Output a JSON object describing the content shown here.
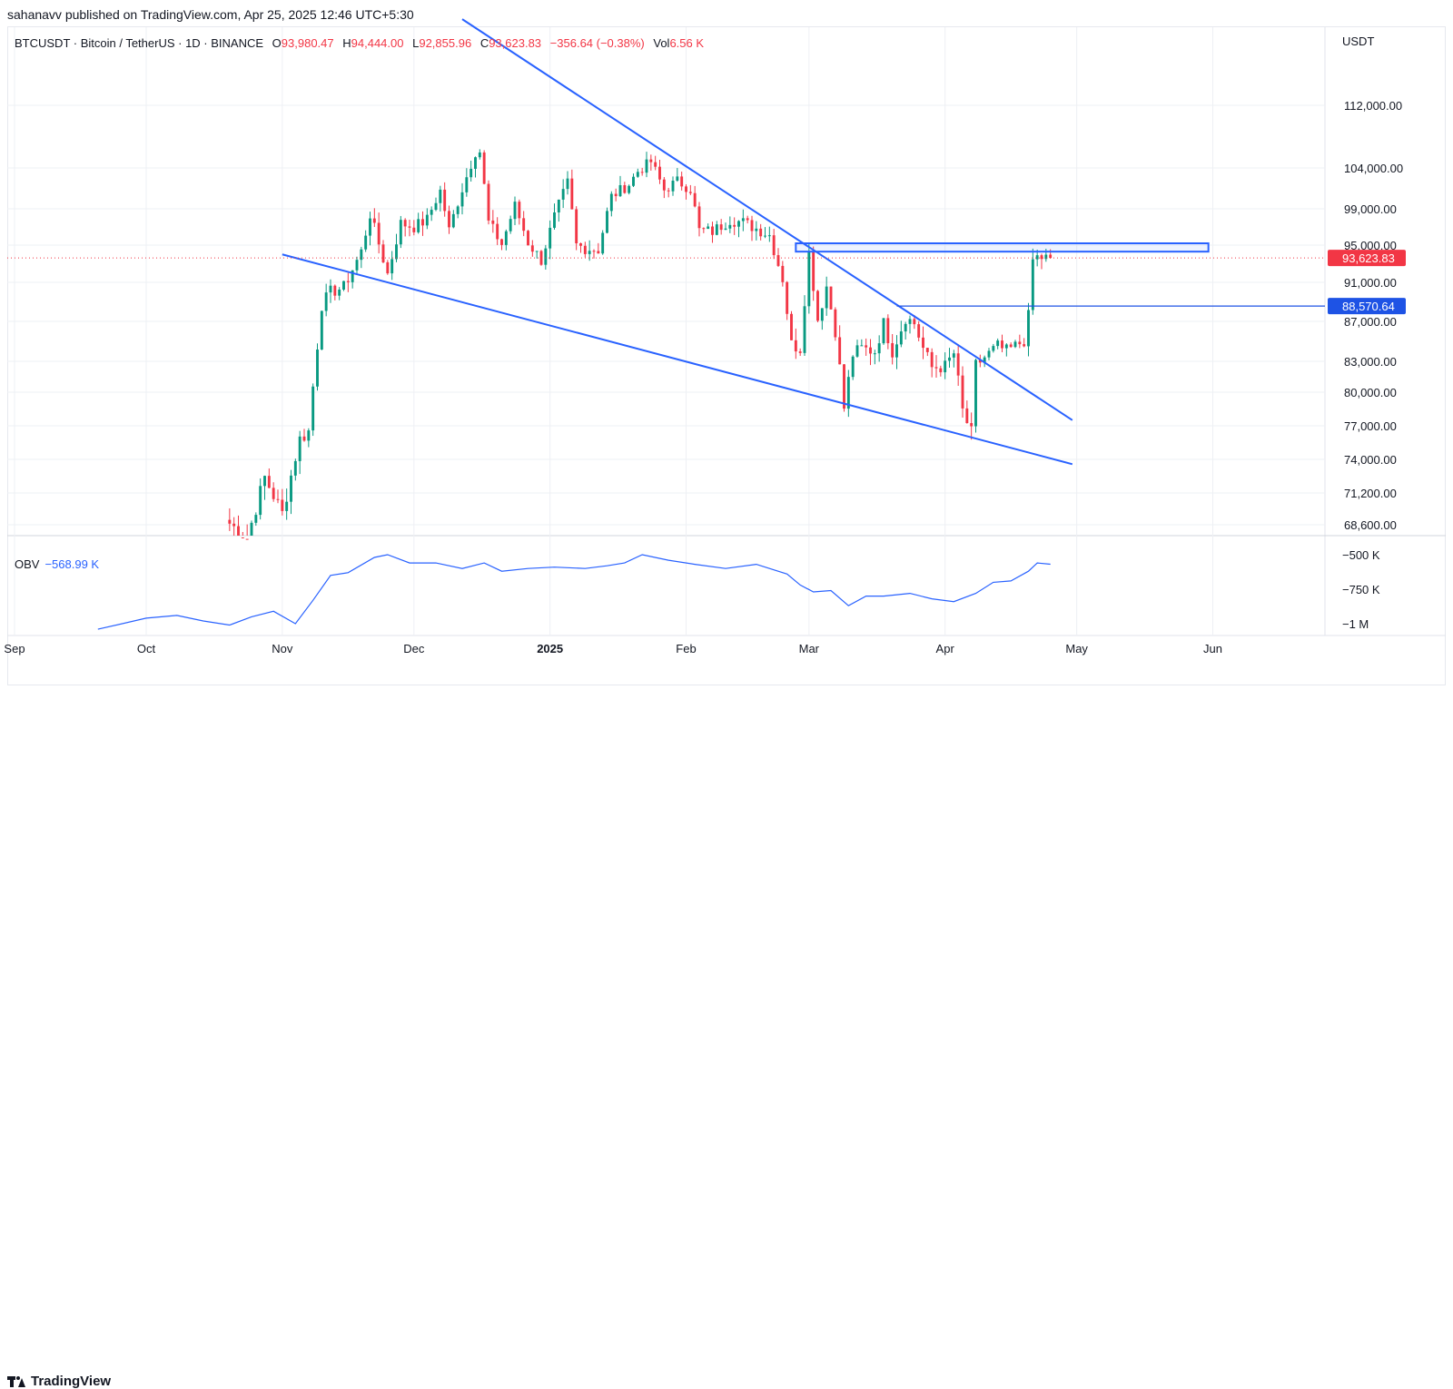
{
  "publisher_line": "sahanavv published on TradingView.com, Apr 25, 2025 12:46 UTC+5:30",
  "legend": {
    "symbol": "BTCUSDT · Bitcoin / TetherUS · 1D · BINANCE",
    "o_label": "O",
    "o_value": "93,980.47",
    "h_label": "H",
    "h_value": "94,444.00",
    "l_label": "L",
    "l_value": "92,855.96",
    "c_label": "C",
    "c_value": "93,623.83",
    "change": "−356.64 (−0.38%)",
    "vol_label": "Vol",
    "vol_value": "6.56 K"
  },
  "obv_legend": {
    "label": "OBV",
    "value": "−568.99 K"
  },
  "brand": "TradingView",
  "colors": {
    "up": "#089981",
    "down": "#f23645",
    "line": "#2962ff",
    "grid": "#eef0f4"
  },
  "chart_data": {
    "type": "candlestick",
    "currency_label": "USDT",
    "y_ticks": [
      "112,000.00",
      "104,000.00",
      "99,000.00",
      "95,000.00",
      "91,000.00",
      "87,000.00",
      "83,000.00",
      "80,000.00",
      "77,000.00",
      "74,000.00",
      "71,200.00",
      "68,600.00"
    ],
    "y_tick_values": [
      112000,
      104000,
      99000,
      95000,
      91000,
      87000,
      83000,
      80000,
      77000,
      74000,
      71200,
      68600
    ],
    "x_ticks": [
      "Sep",
      "Oct",
      "Nov",
      "Dec",
      "2025",
      "Feb",
      "Mar",
      "Apr",
      "May",
      "Jun"
    ],
    "x_tick_dates": [
      "2024-09-01",
      "2024-10-01",
      "2024-11-01",
      "2024-12-01",
      "2025-01-01",
      "2025-02-01",
      "2025-03-01",
      "2025-04-01",
      "2025-05-01",
      "2025-06-01"
    ],
    "price_labels": [
      {
        "text": "93,623.83",
        "value": 93623.83,
        "color": "#f23645"
      },
      {
        "text": "88,570.64",
        "value": 88570.64,
        "color": "#1e53e5"
      }
    ],
    "closes": [
      {
        "date": "2024-10-20",
        "c": 69000
      },
      {
        "date": "2024-10-25",
        "c": 67500
      },
      {
        "date": "2024-10-29",
        "c": 72500
      },
      {
        "date": "2024-11-02",
        "c": 69500
      },
      {
        "date": "2024-11-06",
        "c": 75800
      },
      {
        "date": "2024-11-08",
        "c": 76500
      },
      {
        "date": "2024-11-11",
        "c": 88700
      },
      {
        "date": "2024-11-13",
        "c": 90000
      },
      {
        "date": "2024-11-16",
        "c": 90500
      },
      {
        "date": "2024-11-20",
        "c": 94300
      },
      {
        "date": "2024-11-22",
        "c": 98400
      },
      {
        "date": "2024-11-26",
        "c": 91900
      },
      {
        "date": "2024-11-29",
        "c": 97400
      },
      {
        "date": "2024-12-02",
        "c": 97000
      },
      {
        "date": "2024-12-05",
        "c": 97800
      },
      {
        "date": "2024-12-08",
        "c": 101200
      },
      {
        "date": "2024-12-10",
        "c": 96600
      },
      {
        "date": "2024-12-13",
        "c": 101400
      },
      {
        "date": "2024-12-16",
        "c": 106000
      },
      {
        "date": "2024-12-17",
        "c": 106100
      },
      {
        "date": "2024-12-19",
        "c": 97500
      },
      {
        "date": "2024-12-22",
        "c": 95100
      },
      {
        "date": "2024-12-25",
        "c": 99400
      },
      {
        "date": "2024-12-28",
        "c": 95300
      },
      {
        "date": "2024-12-31",
        "c": 93400
      },
      {
        "date": "2025-01-03",
        "c": 98100
      },
      {
        "date": "2025-01-06",
        "c": 102200
      },
      {
        "date": "2025-01-08",
        "c": 95000
      },
      {
        "date": "2025-01-10",
        "c": 94700
      },
      {
        "date": "2025-01-13",
        "c": 94500
      },
      {
        "date": "2025-01-16",
        "c": 100500
      },
      {
        "date": "2025-01-20",
        "c": 102000
      },
      {
        "date": "2025-01-22",
        "c": 103600
      },
      {
        "date": "2025-01-25",
        "c": 104800
      },
      {
        "date": "2025-01-28",
        "c": 101300
      },
      {
        "date": "2025-01-31",
        "c": 102400
      },
      {
        "date": "2025-02-03",
        "c": 101400
      },
      {
        "date": "2025-02-05",
        "c": 96600
      },
      {
        "date": "2025-02-08",
        "c": 96500
      },
      {
        "date": "2025-02-12",
        "c": 97800
      },
      {
        "date": "2025-02-15",
        "c": 97500
      },
      {
        "date": "2025-02-19",
        "c": 96600
      },
      {
        "date": "2025-02-21",
        "c": 96100
      },
      {
        "date": "2025-02-24",
        "c": 91400
      },
      {
        "date": "2025-02-26",
        "c": 84700
      },
      {
        "date": "2025-02-28",
        "c": 84300
      },
      {
        "date": "2025-03-02",
        "c": 94200
      },
      {
        "date": "2025-03-04",
        "c": 87200
      },
      {
        "date": "2025-03-06",
        "c": 90600
      },
      {
        "date": "2025-03-08",
        "c": 86100
      },
      {
        "date": "2025-03-10",
        "c": 78600
      },
      {
        "date": "2025-03-12",
        "c": 83700
      },
      {
        "date": "2025-03-14",
        "c": 84300
      },
      {
        "date": "2025-03-17",
        "c": 84000
      },
      {
        "date": "2025-03-19",
        "c": 86800
      },
      {
        "date": "2025-03-21",
        "c": 84000
      },
      {
        "date": "2025-03-24",
        "c": 87400
      },
      {
        "date": "2025-03-26",
        "c": 86800
      },
      {
        "date": "2025-03-28",
        "c": 84300
      },
      {
        "date": "2025-03-30",
        "c": 82400
      },
      {
        "date": "2025-04-02",
        "c": 82500
      },
      {
        "date": "2025-04-04",
        "c": 83800
      },
      {
        "date": "2025-04-06",
        "c": 78300
      },
      {
        "date": "2025-04-08",
        "c": 76300
      },
      {
        "date": "2025-04-09",
        "c": 82600
      },
      {
        "date": "2025-04-11",
        "c": 83400
      },
      {
        "date": "2025-04-14",
        "c": 84500
      },
      {
        "date": "2025-04-16",
        "c": 84000
      },
      {
        "date": "2025-04-18",
        "c": 84500
      },
      {
        "date": "2025-04-20",
        "c": 85100
      },
      {
        "date": "2025-04-21",
        "c": 87500
      },
      {
        "date": "2025-04-22",
        "c": 93400
      },
      {
        "date": "2025-04-23",
        "c": 93700
      },
      {
        "date": "2025-04-25",
        "c": 93623.83
      }
    ],
    "obv": {
      "label": "OBV",
      "y_ticks": [
        "−500 K",
        "−750 K",
        "−1 M"
      ],
      "y_tick_values": [
        -500,
        -750,
        -1000
      ],
      "unit": "K",
      "values": [
        {
          "date": "2024-09-20",
          "v": -1040
        },
        {
          "date": "2024-10-01",
          "v": -960
        },
        {
          "date": "2024-10-08",
          "v": -940
        },
        {
          "date": "2024-10-14",
          "v": -980
        },
        {
          "date": "2024-10-20",
          "v": -1010
        },
        {
          "date": "2024-10-25",
          "v": -950
        },
        {
          "date": "2024-10-30",
          "v": -910
        },
        {
          "date": "2024-11-04",
          "v": -1000
        },
        {
          "date": "2024-11-08",
          "v": -830
        },
        {
          "date": "2024-11-12",
          "v": -650
        },
        {
          "date": "2024-11-16",
          "v": -630
        },
        {
          "date": "2024-11-22",
          "v": -520
        },
        {
          "date": "2024-11-25",
          "v": -500
        },
        {
          "date": "2024-11-30",
          "v": -560
        },
        {
          "date": "2024-12-06",
          "v": -560
        },
        {
          "date": "2024-12-12",
          "v": -600
        },
        {
          "date": "2024-12-17",
          "v": -560
        },
        {
          "date": "2024-12-21",
          "v": -620
        },
        {
          "date": "2024-12-27",
          "v": -600
        },
        {
          "date": "2025-01-02",
          "v": -590
        },
        {
          "date": "2025-01-09",
          "v": -600
        },
        {
          "date": "2025-01-14",
          "v": -580
        },
        {
          "date": "2025-01-18",
          "v": -560
        },
        {
          "date": "2025-01-22",
          "v": -500
        },
        {
          "date": "2025-01-28",
          "v": -540
        },
        {
          "date": "2025-02-03",
          "v": -570
        },
        {
          "date": "2025-02-10",
          "v": -600
        },
        {
          "date": "2025-02-17",
          "v": -570
        },
        {
          "date": "2025-02-24",
          "v": -640
        },
        {
          "date": "2025-02-27",
          "v": -720
        },
        {
          "date": "2025-03-02",
          "v": -770
        },
        {
          "date": "2025-03-06",
          "v": -760
        },
        {
          "date": "2025-03-10",
          "v": -870
        },
        {
          "date": "2025-03-14",
          "v": -800
        },
        {
          "date": "2025-03-18",
          "v": -800
        },
        {
          "date": "2025-03-24",
          "v": -780
        },
        {
          "date": "2025-03-29",
          "v": -820
        },
        {
          "date": "2025-04-03",
          "v": -840
        },
        {
          "date": "2025-04-08",
          "v": -780
        },
        {
          "date": "2025-04-12",
          "v": -700
        },
        {
          "date": "2025-04-16",
          "v": -690
        },
        {
          "date": "2025-04-20",
          "v": -620
        },
        {
          "date": "2025-04-22",
          "v": -560
        },
        {
          "date": "2025-04-25",
          "v": -568.99
        }
      ]
    },
    "drawings": {
      "wedge_upper": {
        "from": {
          "date": "2024-12-12",
          "v": 123000
        },
        "to": {
          "date": "2025-04-30",
          "v": 77500
        }
      },
      "wedge_lower": {
        "from": {
          "date": "2024-11-01",
          "v": 94000
        },
        "to": {
          "date": "2025-04-30",
          "v": 73600
        }
      },
      "resistance_box": {
        "from_date": "2025-02-26",
        "to_date": "2025-05-31",
        "top": 95200,
        "bottom": 94300
      },
      "horizontal_line": {
        "from_date": "2025-03-21",
        "value": 88570.64
      }
    }
  }
}
